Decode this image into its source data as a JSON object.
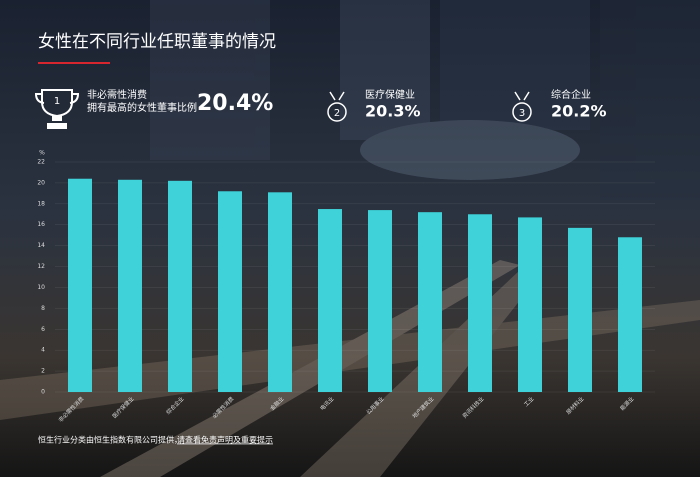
{
  "title": "女性在不同行业任职董事的情况",
  "highlights": [
    {
      "name": "非必需性消费",
      "note": "拥有最高的女性董事比例",
      "value": "20.4%",
      "rank": "1"
    },
    {
      "name": "医疗保健业",
      "value": "20.3%",
      "rank": "2"
    },
    {
      "name": "综合企业",
      "value": "20.2%",
      "rank": "3"
    }
  ],
  "chart_data": {
    "type": "bar",
    "y_unit": "%",
    "categories": [
      "非必需性消费",
      "医疗保健业",
      "综合企业",
      "必需性消费",
      "金融业",
      "电讯业",
      "公用事业",
      "地产建筑业",
      "资讯科技业",
      "工业",
      "原材料业",
      "能源业"
    ],
    "values": [
      20.4,
      20.3,
      20.2,
      19.2,
      19.1,
      17.5,
      17.4,
      17.2,
      17.0,
      16.7,
      15.7,
      14.8
    ],
    "color": "#3fd3d9",
    "ylim": [
      0,
      22
    ],
    "yticks": [
      0,
      2,
      4,
      6,
      8,
      10,
      12,
      14,
      16,
      18,
      20,
      22
    ],
    "grid": true
  },
  "footnote": {
    "text": "恒生行业分类由恒生指数有限公司提供，",
    "link": "请查看免责声明及重要提示"
  }
}
